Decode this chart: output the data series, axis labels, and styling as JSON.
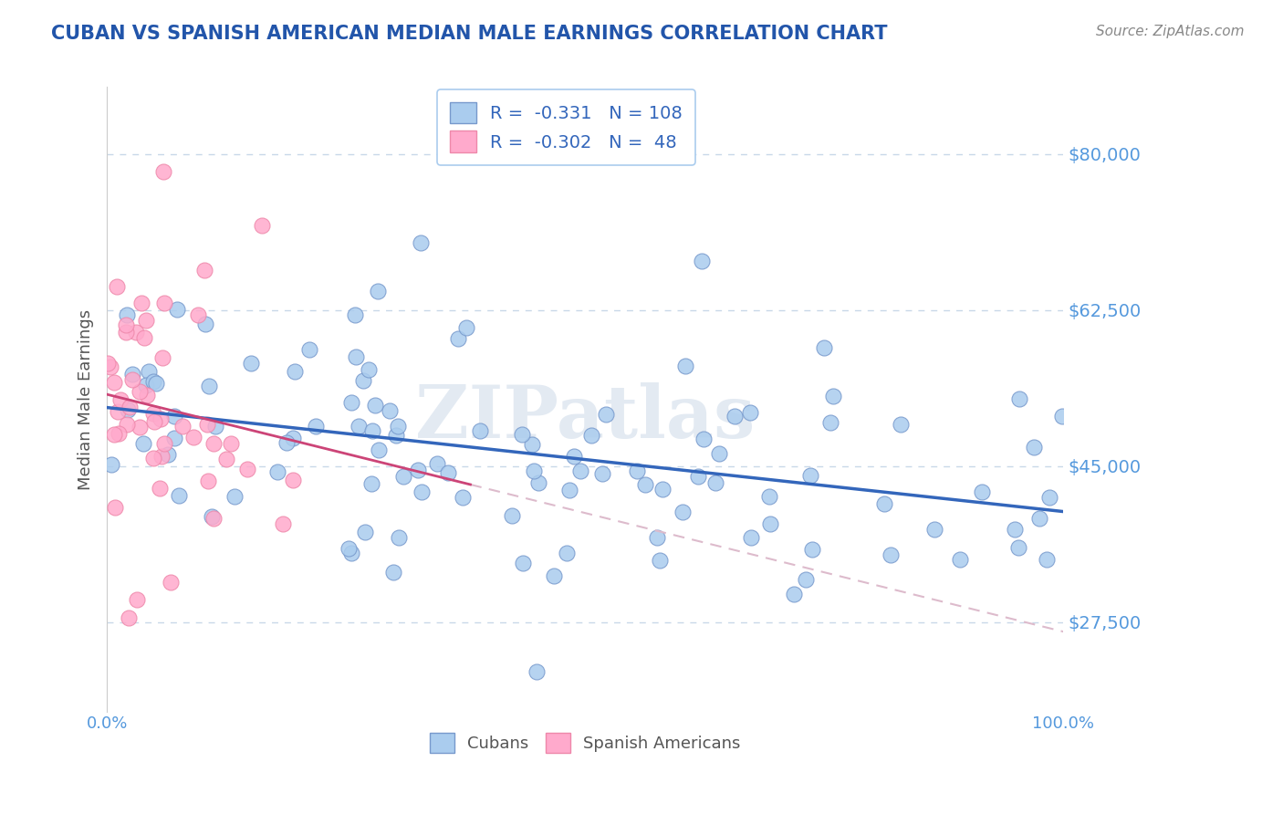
{
  "title": "CUBAN VS SPANISH AMERICAN MEDIAN MALE EARNINGS CORRELATION CHART",
  "source": "Source: ZipAtlas.com",
  "ylabel": "Median Male Earnings",
  "xlim": [
    0.0,
    1.0
  ],
  "ylim": [
    17500,
    87500
  ],
  "yticks": [
    27500,
    45000,
    62500,
    80000
  ],
  "ytick_labels": [
    "$27,500",
    "$45,000",
    "$62,500",
    "$80,000"
  ],
  "xtick_labels": [
    "0.0%",
    "100.0%"
  ],
  "background_color": "#ffffff",
  "grid_color": "#c8d8e8",
  "title_color": "#2255aa",
  "axis_tick_color": "#5599dd",
  "cubans_color": "#aaccee",
  "cubans_edge_color": "#7799cc",
  "spanish_color": "#ffaacc",
  "spanish_edge_color": "#ee88aa",
  "trend_cuban_color": "#3366bb",
  "trend_spanish_solid_color": "#cc4477",
  "trend_spanish_dash_color": "#ddbbcc",
  "R_cuban": -0.331,
  "N_cuban": 108,
  "R_spanish": -0.302,
  "N_spanish": 48,
  "watermark": "ZIPatlas",
  "legend_label_color": "#3366bb",
  "legend_border_color": "#aaccee",
  "bottom_legend_label_color": "#555555"
}
